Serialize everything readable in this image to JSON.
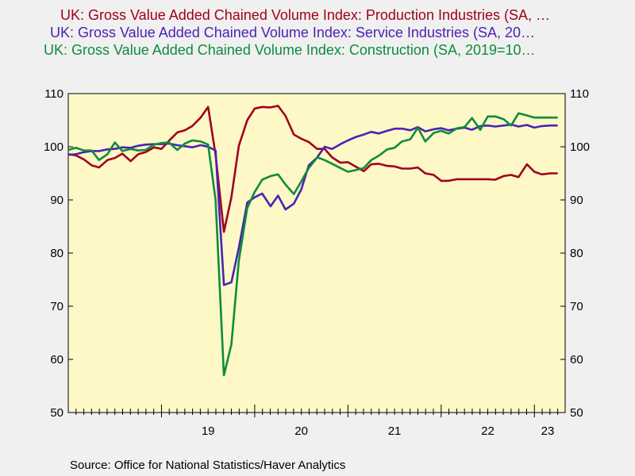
{
  "legend": [
    {
      "text": "UK: Gross Value Added Chained Volume Index: Production Industries (SA, …",
      "color": "#a0001e"
    },
    {
      "text": "UK: Gross Value Added Chained Volume Index: Service Industries (SA, 20…",
      "color": "#4b22b4"
    },
    {
      "text": "UK: Gross Value Added Chained Volume Index: Construction (SA, 2019=10…",
      "color": "#0d8c3c"
    }
  ],
  "source": "Source:  Office for National Statistics/Haver Analytics",
  "chart_data": {
    "type": "line",
    "plot_background": "#fdf8c6",
    "xlim": [
      2018.0,
      2023.33
    ],
    "ylim": [
      50,
      110
    ],
    "yticks": [
      50,
      60,
      70,
      80,
      90,
      100,
      110
    ],
    "y_axes": "left and right",
    "x_ticklabels": [
      {
        "label": "19",
        "x": 2019.5
      },
      {
        "label": "20",
        "x": 2020.5
      },
      {
        "label": "21",
        "x": 2021.5
      },
      {
        "label": "22",
        "x": 2022.5
      },
      {
        "label": "23",
        "x": 2023.5
      }
    ],
    "grid": false,
    "series": [
      {
        "name": "UK: Gross Value Added Chained Volume Index: Production Industries (SA, …",
        "color": "#a0001e",
        "x": [
          2018.0,
          2018.08,
          2018.17,
          2018.25,
          2018.33,
          2018.42,
          2018.5,
          2018.58,
          2018.67,
          2018.75,
          2018.83,
          2018.92,
          2019.0,
          2019.08,
          2019.17,
          2019.25,
          2019.33,
          2019.42,
          2019.5,
          2019.58,
          2019.67,
          2019.75,
          2019.83,
          2019.92,
          2020.0,
          2020.08,
          2020.17,
          2020.25,
          2020.33,
          2020.42,
          2020.5,
          2020.58,
          2020.67,
          2020.75,
          2020.83,
          2020.92,
          2021.0,
          2021.08,
          2021.17,
          2021.25,
          2021.33,
          2021.42,
          2021.5,
          2021.58,
          2021.67,
          2021.75,
          2021.83,
          2021.92,
          2022.0,
          2022.08,
          2022.17,
          2022.25,
          2022.33,
          2022.42,
          2022.5,
          2022.58,
          2022.67,
          2022.75,
          2022.83,
          2022.92,
          2023.0,
          2023.08,
          2023.17,
          2023.25
        ],
        "values": [
          98.6,
          98.4,
          97.6,
          96.5,
          96.1,
          97.5,
          97.9,
          98.7,
          97.3,
          98.6,
          99.0,
          99.9,
          99.6,
          101.1,
          102.7,
          103.1,
          103.9,
          105.5,
          107.5,
          98.5,
          84.0,
          90.5,
          100.2,
          105.0,
          107.2,
          107.5,
          107.4,
          107.7,
          105.8,
          102.3,
          101.5,
          100.9,
          99.6,
          99.6,
          98.0,
          97.0,
          97.1,
          96.3,
          95.4,
          96.7,
          96.8,
          96.4,
          96.3,
          95.9,
          95.9,
          96.1,
          95.0,
          94.7,
          93.6,
          93.6,
          93.9,
          93.9,
          93.9,
          93.9,
          93.9,
          93.8,
          94.5,
          94.7,
          94.3,
          96.7,
          95.3,
          94.8,
          95.0,
          95.0
        ]
      },
      {
        "name": "UK: Gross Value Added Chained Volume Index: Service Industries (SA, 20…",
        "color": "#4b22b4",
        "x": [
          2018.0,
          2018.08,
          2018.17,
          2018.25,
          2018.33,
          2018.42,
          2018.5,
          2018.58,
          2018.67,
          2018.75,
          2018.83,
          2018.92,
          2019.0,
          2019.08,
          2019.17,
          2019.25,
          2019.33,
          2019.42,
          2019.5,
          2019.58,
          2019.67,
          2019.75,
          2019.83,
          2019.92,
          2020.0,
          2020.08,
          2020.17,
          2020.25,
          2020.33,
          2020.42,
          2020.5,
          2020.58,
          2020.67,
          2020.75,
          2020.83,
          2020.92,
          2021.0,
          2021.08,
          2021.17,
          2021.25,
          2021.33,
          2021.42,
          2021.5,
          2021.58,
          2021.67,
          2021.75,
          2021.83,
          2021.92,
          2022.0,
          2022.08,
          2022.17,
          2022.25,
          2022.33,
          2022.42,
          2022.5,
          2022.58,
          2022.67,
          2022.75,
          2022.83,
          2022.92,
          2023.0,
          2023.08,
          2023.17,
          2023.25
        ],
        "values": [
          98.5,
          98.6,
          99.0,
          99.2,
          99.2,
          99.5,
          99.6,
          99.9,
          99.8,
          100.2,
          100.4,
          100.5,
          100.5,
          100.6,
          100.3,
          100.1,
          99.9,
          100.3,
          100.0,
          99.3,
          74.0,
          74.5,
          81.0,
          89.5,
          90.5,
          91.2,
          88.8,
          90.8,
          88.2,
          89.3,
          92.0,
          96.5,
          98.0,
          100.0,
          99.6,
          100.5,
          101.2,
          101.8,
          102.3,
          102.8,
          102.5,
          103.0,
          103.4,
          103.4,
          103.1,
          103.7,
          102.9,
          103.3,
          103.5,
          103.1,
          103.4,
          103.6,
          103.2,
          103.9,
          104.0,
          103.8,
          104.0,
          104.2,
          103.8,
          104.1,
          103.6,
          103.9,
          104.0,
          104.0
        ]
      },
      {
        "name": "UK: Gross Value Added Chained Volume Index: Construction (SA, 2019=10…",
        "color": "#0d8c3c",
        "x": [
          2018.0,
          2018.08,
          2018.17,
          2018.25,
          2018.33,
          2018.42,
          2018.5,
          2018.58,
          2018.67,
          2018.75,
          2018.83,
          2018.92,
          2019.0,
          2019.08,
          2019.17,
          2019.25,
          2019.33,
          2019.42,
          2019.5,
          2019.58,
          2019.67,
          2019.75,
          2019.83,
          2019.92,
          2020.0,
          2020.08,
          2020.17,
          2020.25,
          2020.33,
          2020.42,
          2020.5,
          2020.58,
          2020.67,
          2020.75,
          2020.83,
          2020.92,
          2021.0,
          2021.08,
          2021.17,
          2021.25,
          2021.33,
          2021.42,
          2021.5,
          2021.58,
          2021.67,
          2021.75,
          2021.83,
          2021.92,
          2022.0,
          2022.08,
          2022.17,
          2022.25,
          2022.33,
          2022.42,
          2022.5,
          2022.58,
          2022.67,
          2022.75,
          2022.83,
          2022.92,
          2023.0,
          2023.08,
          2023.17,
          2023.25
        ],
        "values": [
          99.4,
          99.8,
          99.3,
          99.3,
          97.5,
          98.6,
          100.8,
          99.2,
          99.6,
          99.3,
          99.4,
          100.4,
          100.7,
          100.8,
          99.4,
          100.6,
          101.2,
          101.0,
          100.4,
          90.0,
          57.0,
          62.8,
          78.6,
          88.5,
          91.5,
          93.8,
          94.5,
          94.8,
          92.9,
          91.1,
          93.5,
          96.0,
          98.0,
          97.5,
          96.8,
          96.0,
          95.3,
          95.6,
          96.0,
          97.5,
          98.3,
          99.5,
          99.8,
          101.0,
          101.4,
          103.6,
          101.0,
          102.6,
          103.0,
          102.5,
          103.5,
          103.7,
          105.4,
          103.2,
          105.7,
          105.7,
          105.2,
          104.0,
          106.3,
          105.9,
          105.5,
          105.5,
          105.5,
          105.5
        ]
      }
    ]
  }
}
